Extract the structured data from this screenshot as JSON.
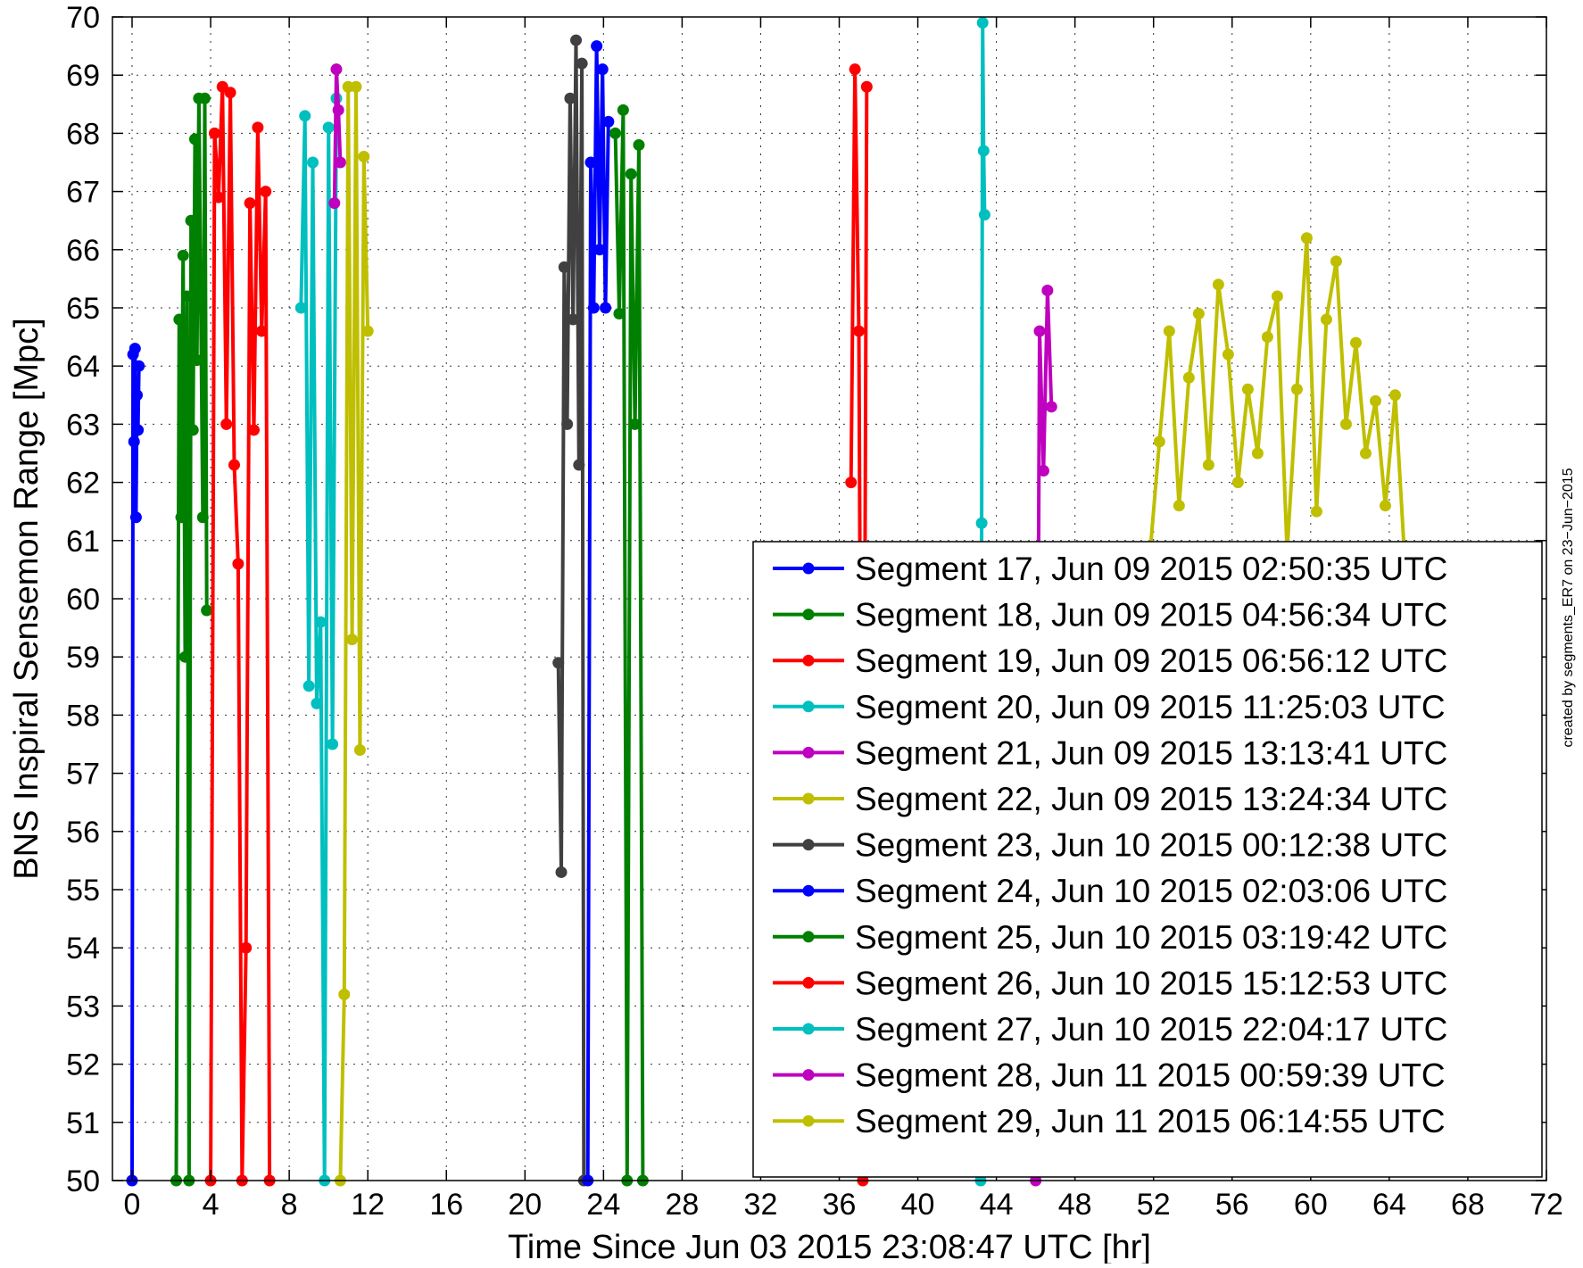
{
  "chart_data": {
    "type": "line",
    "title": "",
    "xlabel": "Time Since Jun 03 2015 23:08:47 UTC [hr]",
    "ylabel": "BNS Inspiral Sensemon Range [Mpc]",
    "xlim": [
      -1,
      72
    ],
    "ylim": [
      50,
      70
    ],
    "xticks": [
      0,
      4,
      8,
      12,
      16,
      20,
      24,
      28,
      32,
      36,
      40,
      44,
      48,
      52,
      56,
      60,
      64,
      68,
      72
    ],
    "yticks": [
      50,
      51,
      52,
      53,
      54,
      55,
      56,
      57,
      58,
      59,
      60,
      61,
      62,
      63,
      64,
      65,
      66,
      67,
      68,
      69,
      70
    ],
    "grid": true,
    "legend_position": "bottom-right",
    "side_note": "created by segments_ER7 on 23−Jun−2015",
    "series": [
      {
        "name": "Segment 17, Jun 09 2015 02:50:35 UTC",
        "color": "#0000ff",
        "x": [
          0.0,
          0.05,
          0.1,
          0.15,
          0.2,
          0.25,
          0.3,
          0.35
        ],
        "y": [
          50,
          64.2,
          62.7,
          64.3,
          61.4,
          63.5,
          62.9,
          64.0
        ]
      },
      {
        "name": "Segment 18, Jun 09 2015 04:56:34 UTC",
        "color": "#008000",
        "x": [
          2.25,
          2.4,
          2.5,
          2.6,
          2.7,
          2.8,
          2.9,
          3.0,
          3.1,
          3.2,
          3.3,
          3.4,
          3.5,
          3.6,
          3.7,
          3.8
        ],
        "y": [
          50,
          64.8,
          61.4,
          65.9,
          59.0,
          65.2,
          50,
          66.5,
          62.9,
          67.9,
          64.1,
          68.6,
          65.0,
          61.4,
          68.6,
          59.8
        ]
      },
      {
        "name": "Segment 19, Jun 09 2015 06:56:12 UTC",
        "color": "#ff0000",
        "x": [
          4.0,
          4.2,
          4.4,
          4.6,
          4.8,
          5.0,
          5.2,
          5.4,
          5.6,
          5.8,
          6.0,
          6.2,
          6.4,
          6.6,
          6.8,
          7.0
        ],
        "y": [
          50,
          68.0,
          66.9,
          68.8,
          63.0,
          68.7,
          62.3,
          60.6,
          50,
          54.0,
          66.8,
          62.9,
          68.1,
          64.6,
          67.0,
          50
        ]
      },
      {
        "name": "Segment 20, Jun 09 2015 11:25:03 UTC",
        "color": "#00bfbf",
        "x": [
          8.6,
          8.8,
          9.0,
          9.2,
          9.4,
          9.6,
          9.8,
          10.0,
          10.2,
          10.4
        ],
        "y": [
          65.0,
          68.3,
          58.5,
          67.5,
          58.2,
          59.6,
          50,
          68.1,
          57.5,
          68.6
        ]
      },
      {
        "name": "Segment 21, Jun 09 2015 13:13:41 UTC",
        "color": "#bf00bf",
        "x": [
          10.3,
          10.4,
          10.5,
          10.6
        ],
        "y": [
          66.8,
          69.1,
          68.4,
          67.5
        ]
      },
      {
        "name": "Segment 22, Jun 09 2015 13:24:34 UTC",
        "color": "#bfbf00",
        "x": [
          10.6,
          10.8,
          11.0,
          11.2,
          11.4,
          11.6,
          11.8,
          12.0
        ],
        "y": [
          50,
          53.2,
          68.8,
          59.3,
          68.8,
          57.4,
          67.6,
          64.6
        ]
      },
      {
        "name": "Segment 23, Jun 10 2015 00:12:38 UTC",
        "color": "#404040",
        "x": [
          21.7,
          21.85,
          22.0,
          22.15,
          22.3,
          22.45,
          22.6,
          22.75,
          22.9,
          23.0
        ],
        "y": [
          58.9,
          55.3,
          65.7,
          63.0,
          68.6,
          64.8,
          69.6,
          62.3,
          69.2,
          50
        ]
      },
      {
        "name": "Segment 24, Jun 10 2015 02:03:06 UTC",
        "color": "#0000ff",
        "x": [
          23.2,
          23.35,
          23.5,
          23.65,
          23.8,
          23.95,
          24.1,
          24.25
        ],
        "y": [
          50,
          67.5,
          65.0,
          69.5,
          66.0,
          69.1,
          65.0,
          68.2
        ]
      },
      {
        "name": "Segment 25, Jun 10 2015 03:19:42 UTC",
        "color": "#008000",
        "x": [
          24.6,
          24.8,
          25.0,
          25.2,
          25.4,
          25.6,
          25.8,
          26.0
        ],
        "y": [
          68.0,
          64.9,
          68.4,
          50,
          67.3,
          63.0,
          67.8,
          50
        ]
      },
      {
        "name": "Segment 26, Jun 10 2015 15:12:53 UTC",
        "color": "#ff0000",
        "x": [
          36.6,
          36.8,
          37.0,
          37.2,
          37.4
        ],
        "y": [
          62.0,
          69.1,
          64.6,
          50,
          68.8
        ]
      },
      {
        "name": "Segment 27, Jun 10 2015 22:04:17 UTC",
        "color": "#00bfbf",
        "x": [
          43.2,
          43.25,
          43.3,
          43.35,
          43.4
        ],
        "y": [
          50,
          61.3,
          69.9,
          67.7,
          66.6
        ]
      },
      {
        "name": "Segment 28, Jun 11 2015 00:59:39 UTC",
        "color": "#bf00bf",
        "x": [
          46.0,
          46.2,
          46.4,
          46.6,
          46.8
        ],
        "y": [
          50,
          64.6,
          62.2,
          65.3,
          63.3
        ]
      },
      {
        "name": "Segment 29, Jun 11 2015 06:14:55 UTC",
        "color": "#bfbf00",
        "x": [
          51.8,
          52.3,
          52.8,
          53.3,
          53.8,
          54.3,
          54.8,
          55.3,
          55.8,
          56.3,
          56.8,
          57.3,
          57.8,
          58.3,
          58.8,
          59.3,
          59.8,
          60.3,
          60.8,
          61.3,
          61.8,
          62.3,
          62.8,
          63.3,
          63.8,
          64.3,
          64.8
        ],
        "y": [
          60.7,
          62.7,
          64.6,
          61.6,
          63.8,
          64.9,
          62.3,
          65.4,
          64.2,
          62.0,
          63.6,
          62.5,
          64.5,
          65.2,
          60.8,
          63.6,
          66.2,
          61.5,
          64.8,
          65.8,
          63.0,
          64.4,
          62.5,
          63.4,
          61.6,
          63.5,
          60.6
        ]
      }
    ]
  }
}
